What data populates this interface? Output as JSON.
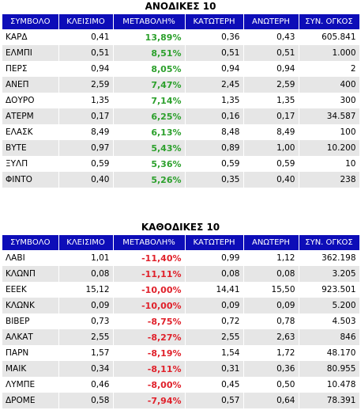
{
  "colors": {
    "header_bg": "#0d0db8",
    "gain": "#2ca02c",
    "loss": "#e0202a",
    "stripe": "#e6e6e6"
  },
  "gainers": {
    "title": "ΑΝΟΔΙΚΕΣ 10",
    "headers": [
      "ΣΥΜΒΟΛΟ",
      "ΚΛΕΙΣΙΜΟ",
      "ΜΕΤΑΒΟΛΗ%",
      "ΚΑΤΩΤΕΡΗ",
      "ΑΝΩΤΕΡΗ",
      "ΣΥΝ. ΟΓΚΟΣ"
    ],
    "rows": [
      [
        "ΚΑΡΔ",
        "0,41",
        "13,89%",
        "0,36",
        "0,43",
        "605.841"
      ],
      [
        "ΕΛΜΠΙ",
        "0,51",
        "8,51%",
        "0,51",
        "0,51",
        "1.000"
      ],
      [
        "ΠΕΡΣ",
        "0,94",
        "8,05%",
        "0,94",
        "0,94",
        "2"
      ],
      [
        "ΑΝΕΠ",
        "2,59",
        "7,47%",
        "2,45",
        "2,59",
        "400"
      ],
      [
        "ΔΟΥΡΟ",
        "1,35",
        "7,14%",
        "1,35",
        "1,35",
        "300"
      ],
      [
        "ΑΤΕΡΜ",
        "0,17",
        "6,25%",
        "0,16",
        "0,17",
        "34.587"
      ],
      [
        "ΕΛΑΣΚ",
        "8,49",
        "6,13%",
        "8,48",
        "8,49",
        "100"
      ],
      [
        "ΒΥΤΕ",
        "0,97",
        "5,43%",
        "0,89",
        "1,00",
        "10.200"
      ],
      [
        "ΞΥΛΠ",
        "0,59",
        "5,36%",
        "0,59",
        "0,59",
        "10"
      ],
      [
        "ΦΙΝΤΟ",
        "0,40",
        "5,26%",
        "0,35",
        "0,40",
        "238"
      ]
    ]
  },
  "losers": {
    "title": "ΚΑΘΟΔΙΚΕΣ 10",
    "headers": [
      "ΣΥΜΒΟΛΟ",
      "ΚΛΕΙΣΙΜΟ",
      "ΜΕΤΑΒΟΛΗ%",
      "ΚΑΤΩΤΕΡΗ",
      "ΑΝΩΤΕΡΗ",
      "ΣΥΝ. ΟΓΚΟΣ"
    ],
    "rows": [
      [
        "ΛΑΒΙ",
        "1,01",
        "-11,40%",
        "0,99",
        "1,12",
        "362.198"
      ],
      [
        "ΚΛΩΝΠ",
        "0,08",
        "-11,11%",
        "0,08",
        "0,08",
        "3.205"
      ],
      [
        "ΕΕΕΚ",
        "15,12",
        "-10,00%",
        "14,41",
        "15,50",
        "923.501"
      ],
      [
        "ΚΛΩΝΚ",
        "0,09",
        "-10,00%",
        "0,09",
        "0,09",
        "5.200"
      ],
      [
        "ΒΙΒΕΡ",
        "0,73",
        "-8,75%",
        "0,72",
        "0,78",
        "4.503"
      ],
      [
        "ΑΛΚΑΤ",
        "2,55",
        "-8,27%",
        "2,55",
        "2,63",
        "846"
      ],
      [
        "ΠΑΡΝ",
        "1,57",
        "-8,19%",
        "1,54",
        "1,72",
        "48.170"
      ],
      [
        "ΜΑΙΚ",
        "0,34",
        "-8,11%",
        "0,31",
        "0,36",
        "80.955"
      ],
      [
        "ΛΥΜΠΕ",
        "0,46",
        "-8,00%",
        "0,45",
        "0,50",
        "10.478"
      ],
      [
        "ΔΡΟΜΕ",
        "0,58",
        "-7,94%",
        "0,57",
        "0,64",
        "78.391"
      ]
    ]
  }
}
